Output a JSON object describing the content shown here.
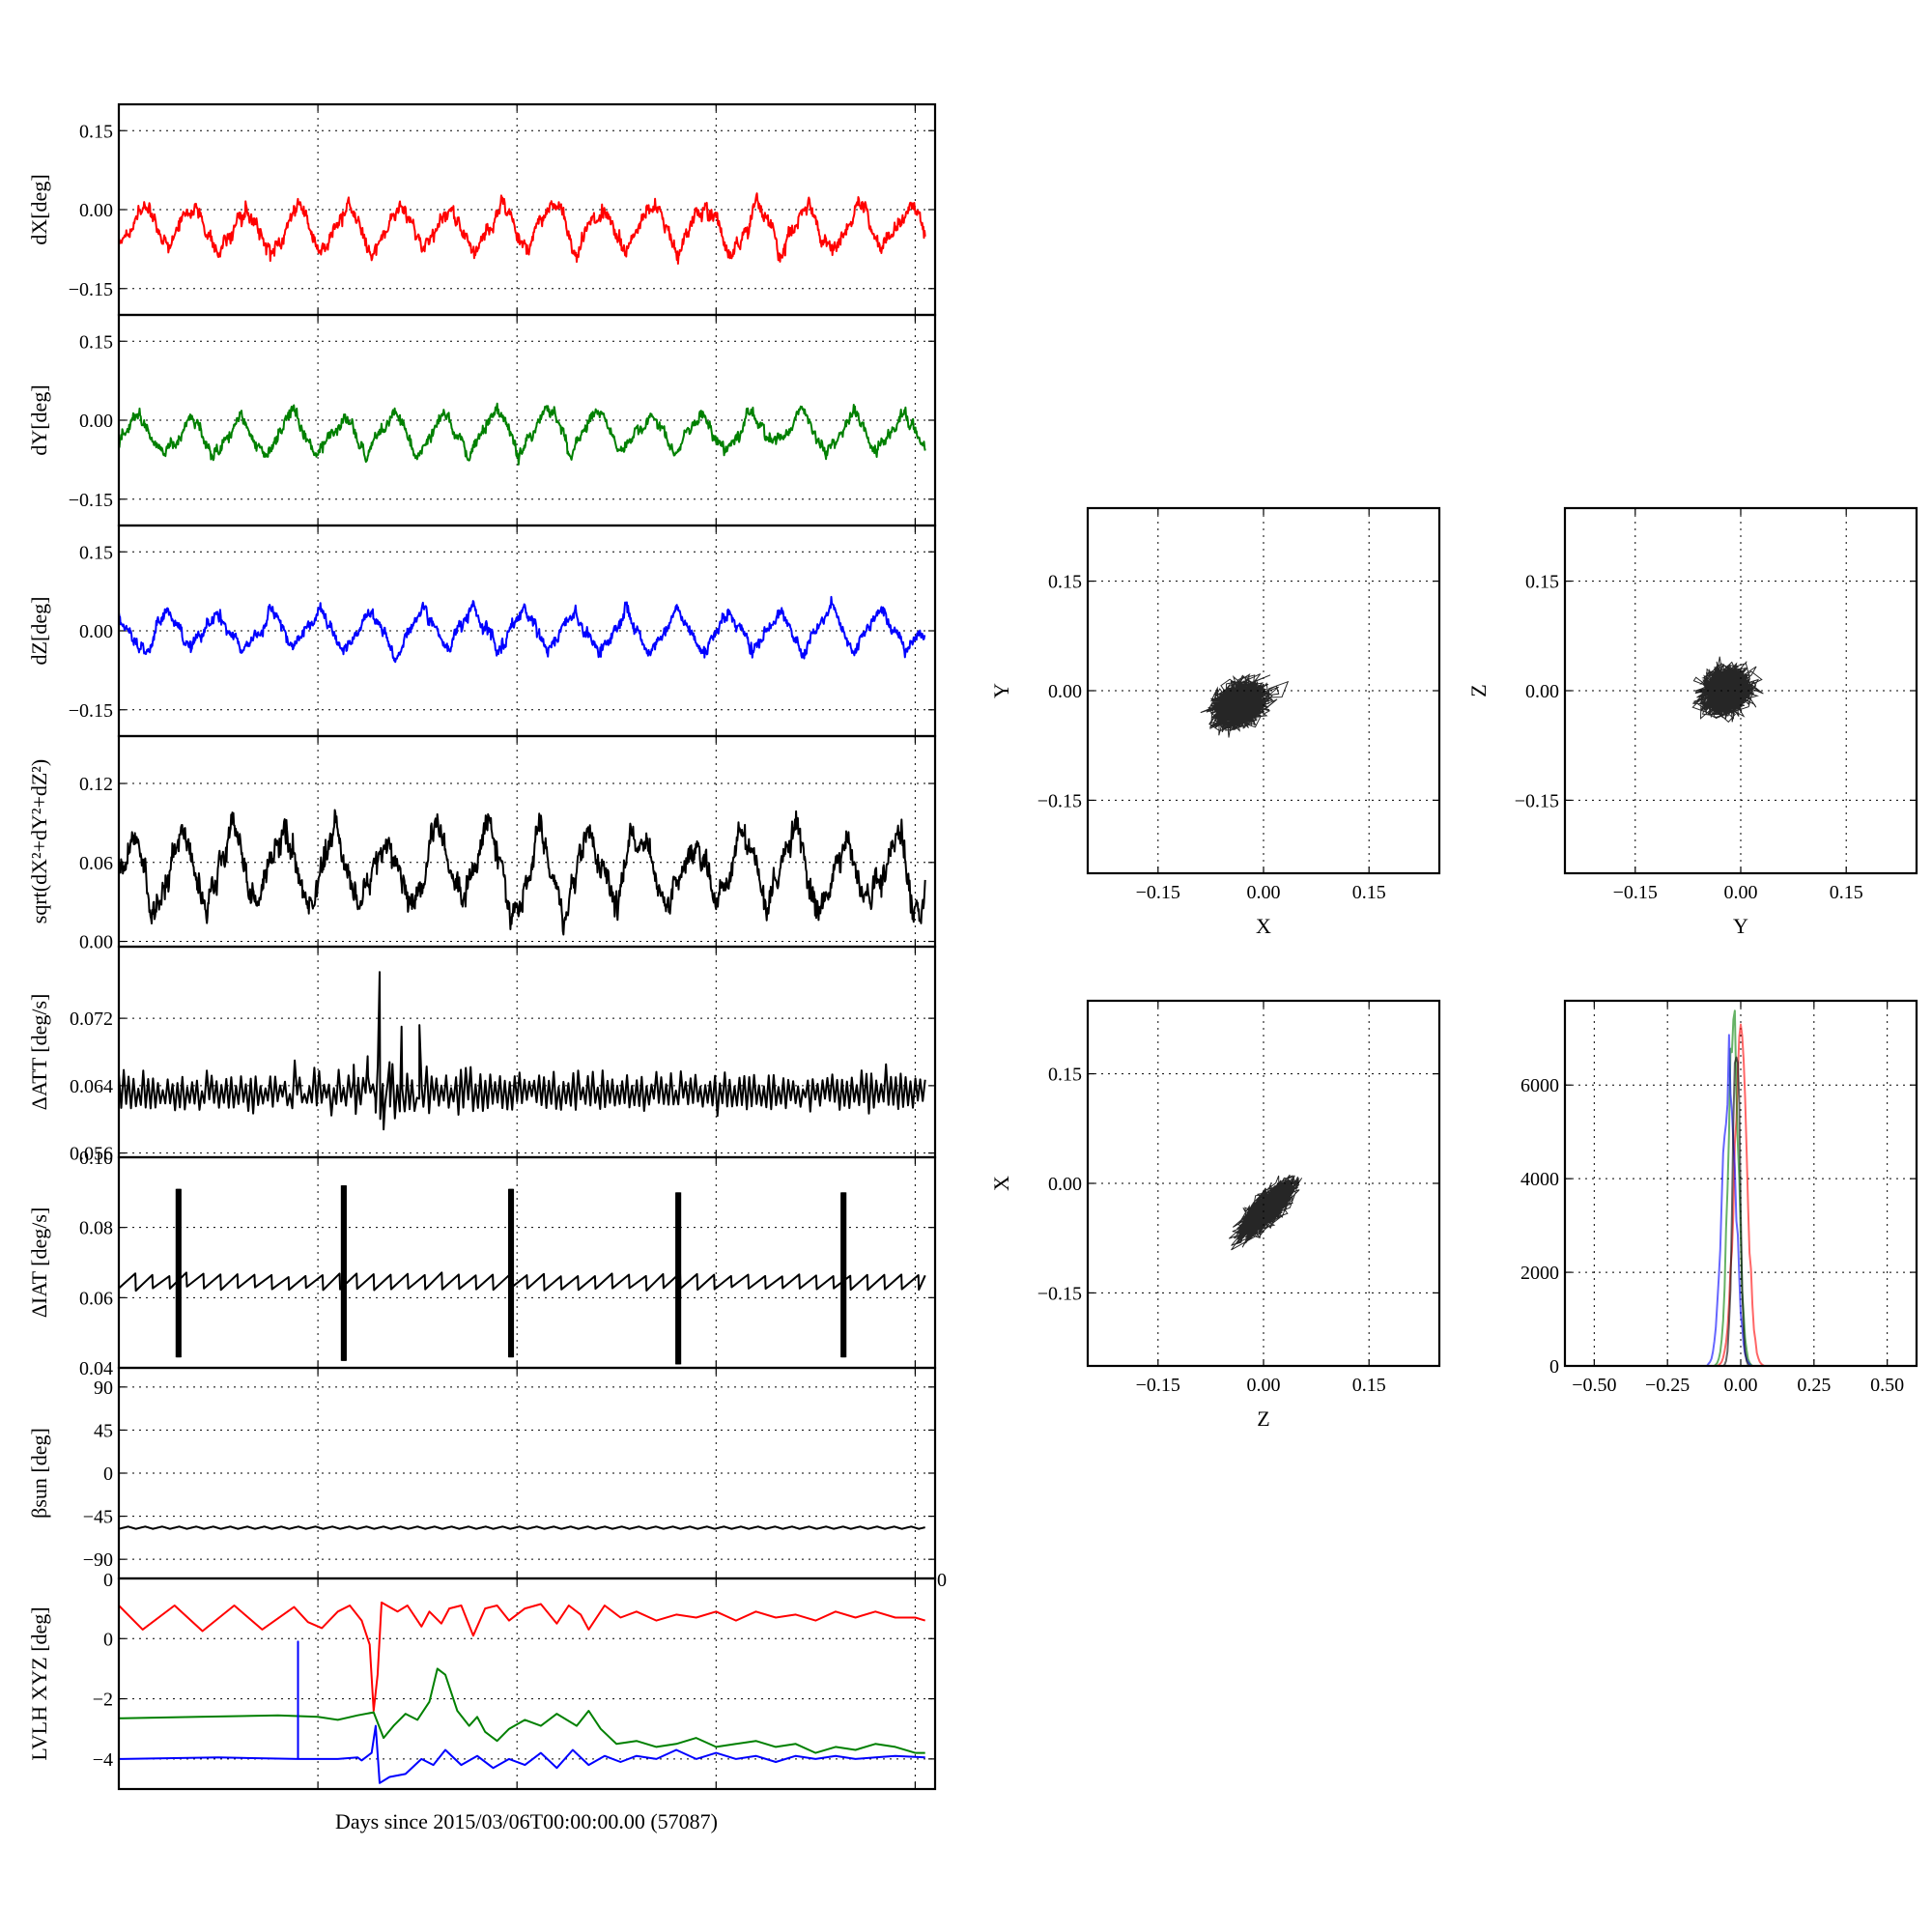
{
  "figure": {
    "xlabel": "Days since 2015/03/06T00:00:00.00 (57087)"
  },
  "colors": {
    "x": "#ff0000",
    "y": "#008000",
    "z": "#0000ff",
    "mag": "#000000"
  },
  "chart_data": [
    {
      "id": "dx",
      "type": "line",
      "ylabel": "dX[deg]",
      "ylim": [
        -0.2,
        0.2
      ],
      "yticks": [
        0.15,
        0.0,
        -0.15
      ],
      "yticklabels": [
        "0.15",
        "0.00",
        "−0.15"
      ],
      "xlim": [
        0,
        4.1
      ],
      "xgrid": [
        1,
        2,
        3,
        4
      ],
      "grid": true,
      "series": [
        {
          "color": "x",
          "wave": {
            "mean": -0.035,
            "amp": 0.045,
            "period": 0.2565,
            "phase": 0.05,
            "noise": 0.012
          }
        }
      ]
    },
    {
      "id": "dy",
      "type": "line",
      "ylabel": "dY[deg]",
      "ylim": [
        -0.2,
        0.2
      ],
      "yticks": [
        0.15,
        0.0,
        -0.15
      ],
      "yticklabels": [
        "0.15",
        "0.00",
        "−0.15"
      ],
      "xlim": [
        0,
        4.1
      ],
      "xgrid": [
        1,
        2,
        3,
        4
      ],
      "grid": true,
      "series": [
        {
          "color": "y",
          "wave": {
            "mean": -0.025,
            "amp": 0.04,
            "period": 0.2565,
            "phase": 0.15,
            "noise": 0.01
          }
        }
      ]
    },
    {
      "id": "dz",
      "type": "line",
      "ylabel": "dZ[deg]",
      "ylim": [
        -0.2,
        0.2
      ],
      "yticks": [
        0.15,
        0.0,
        -0.15
      ],
      "yticklabels": [
        "0.15",
        "0.00",
        "−0.15"
      ],
      "xlim": [
        0,
        4.1
      ],
      "xgrid": [
        1,
        2,
        3,
        4
      ],
      "grid": true,
      "series": [
        {
          "color": "z",
          "wave": {
            "mean": 0.0,
            "amp": 0.04,
            "period": 0.2565,
            "phase": 0.6,
            "noise": 0.01
          }
        }
      ]
    },
    {
      "id": "mag",
      "type": "line",
      "ylabel": "sqrt(dX²+dY²+dZ²)",
      "ylim": [
        -0.004,
        0.156
      ],
      "yticks": [
        0.12,
        0.06,
        0.0
      ],
      "yticklabels": [
        "0.12",
        "0.06",
        "0.00"
      ],
      "xlim": [
        0,
        4.1
      ],
      "xgrid": [
        1,
        2,
        3,
        4
      ],
      "grid": true,
      "series": [
        {
          "color": "mag",
          "wave": {
            "mean": 0.055,
            "amp": 0.03,
            "period": 0.2565,
            "phase": 0.3,
            "noise": 0.009
          }
        }
      ]
    },
    {
      "id": "datt",
      "type": "line",
      "ylabel": "ΔATT [deg/s]",
      "ylim": [
        0.0555,
        0.0805
      ],
      "yticks": [
        0.072,
        0.064,
        0.056
      ],
      "yticklabels": [
        "0.072",
        "0.064",
        "0.056"
      ],
      "xlim": [
        0,
        4.1
      ],
      "xgrid": [
        1,
        2,
        3,
        4
      ],
      "grid": true,
      "series": [
        {
          "color": "mag",
          "band": {
            "upper": 0.0647,
            "lower": 0.0617,
            "teeth": 165
          }
        }
      ]
    },
    {
      "id": "diat",
      "type": "line",
      "ylabel": "ΔIAT [deg/s]",
      "ylim": [
        0.04,
        0.1
      ],
      "yticks": [
        0.1,
        0.08,
        0.06,
        0.04
      ],
      "yticklabels": [
        "0.10",
        "0.08",
        "0.06",
        "0.04"
      ],
      "xlim": [
        0,
        4.1
      ],
      "xgrid": [
        1,
        2,
        3,
        4
      ],
      "grid": true,
      "series": [
        {
          "color": "mag",
          "sawtooth": {
            "low": 0.0625,
            "high": 0.0665,
            "period": 0.0855
          },
          "spikes": [
            {
              "x": 0.29,
              "low": 0.043,
              "high": 0.091
            },
            {
              "x": 1.12,
              "low": 0.042,
              "high": 0.092
            },
            {
              "x": 1.96,
              "low": 0.043,
              "high": 0.091
            },
            {
              "x": 2.8,
              "low": 0.041,
              "high": 0.09
            },
            {
              "x": 3.63,
              "low": 0.043,
              "high": 0.09
            }
          ]
        }
      ]
    },
    {
      "id": "beta",
      "type": "line",
      "ylabel": "βsun [deg]",
      "ylim": [
        -110,
        110
      ],
      "yticks": [
        90,
        45,
        0,
        -45,
        -90
      ],
      "yticklabels": [
        "90",
        "45",
        "0",
        "−45",
        "−90"
      ],
      "xlim": [
        0,
        4.1
      ],
      "xgrid": [
        1,
        2,
        3,
        4
      ],
      "grid": true,
      "series": [
        {
          "color": "mag",
          "wave": {
            "mean": -57,
            "amp": 1.2,
            "period": 0.0855,
            "phase": 0,
            "noise": 0
          }
        }
      ]
    },
    {
      "id": "lvlh",
      "type": "line",
      "ylabel": "LVLH XYZ [deg]",
      "ylim": [
        -5,
        2
      ],
      "yticks": [
        0,
        -2,
        -4
      ],
      "yticklabels": [
        "0",
        "−2",
        "−4"
      ],
      "xlim": [
        0,
        4.1
      ],
      "xgrid": [
        1,
        2,
        3,
        4
      ],
      "grid": true,
      "corner_labels": [
        "0",
        "0"
      ],
      "series": [
        {
          "color": "x",
          "points": [
            [
              0,
              1.1
            ],
            [
              0.12,
              0.3
            ],
            [
              0.28,
              1.1
            ],
            [
              0.42,
              0.25
            ],
            [
              0.58,
              1.1
            ],
            [
              0.72,
              0.3
            ],
            [
              0.88,
              1.05
            ],
            [
              0.95,
              0.55
            ],
            [
              1.02,
              0.35
            ],
            [
              1.1,
              0.9
            ],
            [
              1.16,
              1.1
            ],
            [
              1.22,
              0.6
            ],
            [
              1.26,
              -0.2
            ],
            [
              1.28,
              -2.4
            ],
            [
              1.3,
              -1.2
            ],
            [
              1.32,
              1.2
            ],
            [
              1.4,
              0.9
            ],
            [
              1.45,
              1.1
            ],
            [
              1.52,
              0.4
            ],
            [
              1.56,
              0.9
            ],
            [
              1.62,
              0.5
            ],
            [
              1.66,
              1.0
            ],
            [
              1.72,
              1.1
            ],
            [
              1.78,
              0.1
            ],
            [
              1.84,
              1.0
            ],
            [
              1.9,
              1.1
            ],
            [
              1.96,
              0.6
            ],
            [
              2.04,
              1.0
            ],
            [
              2.12,
              1.15
            ],
            [
              2.2,
              0.5
            ],
            [
              2.26,
              1.1
            ],
            [
              2.32,
              0.8
            ],
            [
              2.36,
              0.3
            ],
            [
              2.44,
              1.1
            ],
            [
              2.52,
              0.7
            ],
            [
              2.6,
              0.9
            ],
            [
              2.7,
              0.6
            ],
            [
              2.8,
              0.8
            ],
            [
              2.9,
              0.7
            ],
            [
              3.0,
              0.9
            ],
            [
              3.1,
              0.6
            ],
            [
              3.2,
              0.9
            ],
            [
              3.3,
              0.7
            ],
            [
              3.4,
              0.8
            ],
            [
              3.5,
              0.6
            ],
            [
              3.6,
              0.9
            ],
            [
              3.7,
              0.7
            ],
            [
              3.8,
              0.9
            ],
            [
              3.9,
              0.7
            ],
            [
              4.0,
              0.7
            ],
            [
              4.05,
              0.6
            ]
          ]
        },
        {
          "color": "y",
          "points": [
            [
              0,
              -2.65
            ],
            [
              0.4,
              -2.6
            ],
            [
              0.8,
              -2.55
            ],
            [
              1.0,
              -2.6
            ],
            [
              1.1,
              -2.7
            ],
            [
              1.2,
              -2.55
            ],
            [
              1.28,
              -2.45
            ],
            [
              1.33,
              -3.3
            ],
            [
              1.38,
              -2.9
            ],
            [
              1.44,
              -2.5
            ],
            [
              1.5,
              -2.7
            ],
            [
              1.56,
              -2.1
            ],
            [
              1.6,
              -1.0
            ],
            [
              1.64,
              -1.2
            ],
            [
              1.7,
              -2.4
            ],
            [
              1.76,
              -2.9
            ],
            [
              1.8,
              -2.6
            ],
            [
              1.84,
              -3.1
            ],
            [
              1.9,
              -3.4
            ],
            [
              1.96,
              -3.0
            ],
            [
              2.04,
              -2.7
            ],
            [
              2.12,
              -2.9
            ],
            [
              2.2,
              -2.5
            ],
            [
              2.3,
              -2.9
            ],
            [
              2.36,
              -2.4
            ],
            [
              2.42,
              -3.0
            ],
            [
              2.5,
              -3.5
            ],
            [
              2.6,
              -3.4
            ],
            [
              2.7,
              -3.6
            ],
            [
              2.8,
              -3.5
            ],
            [
              2.9,
              -3.3
            ],
            [
              3.0,
              -3.6
            ],
            [
              3.1,
              -3.5
            ],
            [
              3.2,
              -3.4
            ],
            [
              3.3,
              -3.6
            ],
            [
              3.4,
              -3.5
            ],
            [
              3.5,
              -3.8
            ],
            [
              3.6,
              -3.6
            ],
            [
              3.7,
              -3.7
            ],
            [
              3.8,
              -3.5
            ],
            [
              3.9,
              -3.6
            ],
            [
              4.0,
              -3.8
            ],
            [
              4.05,
              -3.8
            ]
          ]
        },
        {
          "color": "z",
          "points": [
            [
              0,
              -4.0
            ],
            [
              0.5,
              -3.95
            ],
            [
              0.9,
              -4.0
            ],
            [
              0.9,
              -3.9
            ],
            [
              0.9,
              -0.1
            ],
            [
              0.9,
              -4.0
            ],
            [
              1.1,
              -4.0
            ],
            [
              1.2,
              -3.95
            ],
            [
              1.22,
              -4.05
            ],
            [
              1.27,
              -3.8
            ],
            [
              1.29,
              -2.9
            ],
            [
              1.31,
              -4.8
            ],
            [
              1.36,
              -4.6
            ],
            [
              1.44,
              -4.5
            ],
            [
              1.52,
              -4.0
            ],
            [
              1.58,
              -4.2
            ],
            [
              1.64,
              -3.7
            ],
            [
              1.72,
              -4.2
            ],
            [
              1.8,
              -3.9
            ],
            [
              1.88,
              -4.3
            ],
            [
              1.96,
              -4.0
            ],
            [
              2.04,
              -4.2
            ],
            [
              2.12,
              -3.8
            ],
            [
              2.2,
              -4.3
            ],
            [
              2.28,
              -3.7
            ],
            [
              2.36,
              -4.2
            ],
            [
              2.44,
              -3.9
            ],
            [
              2.52,
              -4.1
            ],
            [
              2.6,
              -3.9
            ],
            [
              2.7,
              -4.0
            ],
            [
              2.8,
              -3.7
            ],
            [
              2.9,
              -4.0
            ],
            [
              3.0,
              -3.8
            ],
            [
              3.1,
              -4.0
            ],
            [
              3.2,
              -3.9
            ],
            [
              3.3,
              -4.1
            ],
            [
              3.4,
              -3.9
            ],
            [
              3.5,
              -4.0
            ],
            [
              3.6,
              -3.9
            ],
            [
              3.7,
              -4.0
            ],
            [
              3.8,
              -3.95
            ],
            [
              3.9,
              -3.9
            ],
            [
              4.05,
              -3.95
            ]
          ]
        }
      ]
    },
    {
      "id": "xy",
      "type": "scatter",
      "xlabel": "X",
      "ylabel": "Y",
      "xlim": [
        -0.25,
        0.25
      ],
      "ylim": [
        -0.25,
        0.25
      ],
      "ticks": [
        -0.15,
        0.0,
        0.15
      ],
      "ticklabels": [
        "−0.15",
        "0.00",
        "0.15"
      ],
      "grid": true,
      "cloud": {
        "cx": -0.035,
        "cy": -0.02,
        "sx": 0.03,
        "sy": 0.025,
        "rho": 0.3,
        "color": "mag"
      }
    },
    {
      "id": "yz",
      "type": "scatter",
      "xlabel": "Y",
      "ylabel": "Z",
      "xlim": [
        -0.25,
        0.25
      ],
      "ylim": [
        -0.25,
        0.25
      ],
      "ticks": [
        -0.15,
        0.0,
        0.15
      ],
      "ticklabels": [
        "−0.15",
        "0.00",
        "0.15"
      ],
      "grid": true,
      "cloud": {
        "cx": -0.02,
        "cy": 0.0,
        "sx": 0.027,
        "sy": 0.025,
        "rho": 0.1,
        "color": "mag"
      }
    },
    {
      "id": "zx",
      "type": "scatter",
      "xlabel": "Z",
      "ylabel": "X",
      "xlim": [
        -0.25,
        0.25
      ],
      "ylim": [
        -0.25,
        0.25
      ],
      "ticks": [
        -0.15,
        0.0,
        0.15
      ],
      "ticklabels": [
        "−0.15",
        "0.00",
        "0.15"
      ],
      "grid": true,
      "cloud": {
        "cx": 0.005,
        "cy": -0.035,
        "sx": 0.03,
        "sy": 0.03,
        "rho": 0.8,
        "color": "mag"
      }
    },
    {
      "id": "hist",
      "type": "line",
      "xlim": [
        -0.6,
        0.6
      ],
      "ylim": [
        0,
        7800
      ],
      "xticks": [
        -0.5,
        -0.25,
        0.0,
        0.25,
        0.5
      ],
      "xticklabels": [
        "−0.50",
        "−0.25",
        "0.00",
        "0.25",
        "0.50"
      ],
      "yticks": [
        0,
        2000,
        4000,
        6000
      ],
      "yticklabels": [
        "0",
        "2000",
        "4000",
        "6000"
      ],
      "grid": true,
      "series": [
        {
          "color": "x",
          "center": 0.0,
          "sigma": 0.022,
          "peak": 6800
        },
        {
          "color": "y",
          "center": -0.025,
          "sigma": 0.018,
          "peak": 7200
        },
        {
          "color": "z",
          "center": -0.04,
          "sigma": 0.022,
          "peak": 6500
        },
        {
          "color": "mag",
          "center": -0.015,
          "sigma": 0.012,
          "peak": 7300
        }
      ]
    }
  ]
}
